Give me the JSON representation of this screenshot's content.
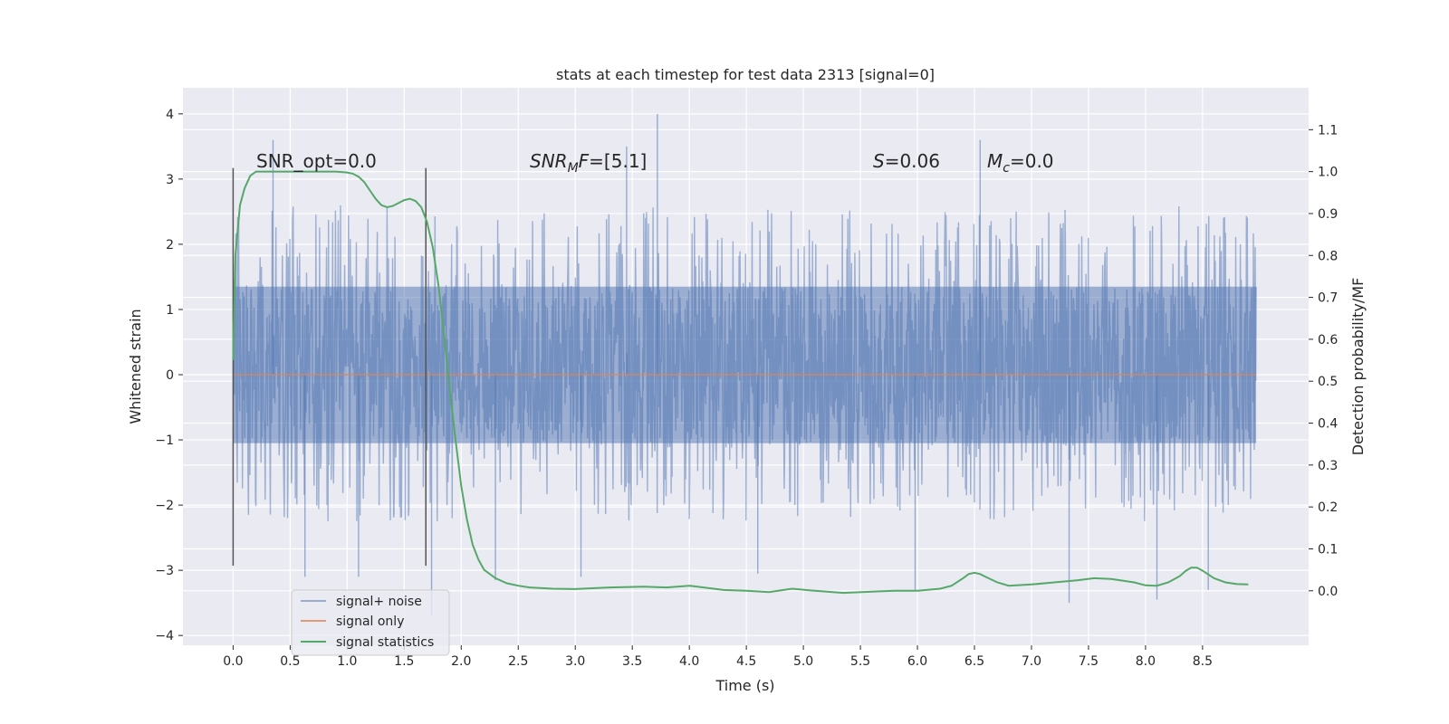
{
  "chart_data": {
    "type": "line",
    "title": "stats at each timestep for test data 2313 [signal=0]",
    "xlabel": "Time (s)",
    "ylabel": "Whitened strain",
    "y2label": "Detection probability/MF",
    "xlim": [
      -0.44,
      9.43
    ],
    "ylim": [
      -4.15,
      4.4
    ],
    "y2lim": [
      -0.13,
      1.2
    ],
    "x_ticks": [
      "0.0",
      "0.5",
      "1.0",
      "1.5",
      "2.0",
      "2.5",
      "3.0",
      "3.5",
      "4.0",
      "4.5",
      "5.0",
      "5.5",
      "6.0",
      "6.5",
      "7.0",
      "7.5",
      "8.0",
      "8.5"
    ],
    "y_ticks": [
      "4",
      "3",
      "2",
      "1",
      "0",
      "−1",
      "−2",
      "−3",
      "−4"
    ],
    "y2_ticks": [
      "1.1",
      "1.0",
      "0.9",
      "0.8",
      "0.7",
      "0.6",
      "0.5",
      "0.4",
      "0.3",
      "0.2",
      "0.1",
      "0.0"
    ],
    "grid": true,
    "legend_position": "lower-left",
    "annotations": {
      "snr_opt": "SNR_opt=0.0",
      "snr_mf_main": "SNR",
      "snr_mf_sub": "M",
      "snr_mf_rest": "F=[5.1]",
      "s_var": "S",
      "s_rest": "=0.06",
      "mc_var": "M",
      "mc_sub": "c",
      "mc_rest": "=0.0"
    },
    "colors": {
      "background": "#eaeaf2",
      "grid": "#ffffff",
      "noise": "#4c72b0",
      "signal": "#dd8452",
      "statistics": "#55a868",
      "marker": "#555555"
    },
    "markers_x": [
      0.0,
      1.69
    ],
    "series": [
      {
        "name": "signal+ noise",
        "t_start": 0.0,
        "t_end": 8.97,
        "typical_band": [
          -1.05,
          1.35
        ],
        "peak_range": [
          -3.5,
          4.0
        ],
        "spikes": [
          [
            0.35,
            3.6
          ],
          [
            3.72,
            4.0
          ],
          [
            3.45,
            3.5
          ],
          [
            6.55,
            3.6
          ],
          [
            1.74,
            -3.7
          ],
          [
            7.33,
            -3.5
          ],
          [
            2.3,
            -3.15
          ],
          [
            3.05,
            -3.1
          ],
          [
            5.98,
            -3.3
          ],
          [
            8.1,
            -3.45
          ],
          [
            8.55,
            -3.3
          ],
          [
            1.1,
            -3.1
          ],
          [
            0.63,
            -3.1
          ],
          [
            4.6,
            -3.05
          ]
        ]
      },
      {
        "name": "signal only",
        "x": [
          0.0,
          8.97
        ],
        "values": [
          0.0,
          0.0
        ]
      },
      {
        "name": "signal statistics",
        "axis": "right",
        "x": [
          0.0,
          0.02,
          0.06,
          0.1,
          0.15,
          0.2,
          0.3,
          0.5,
          0.7,
          0.9,
          1.0,
          1.05,
          1.1,
          1.15,
          1.2,
          1.25,
          1.3,
          1.35,
          1.4,
          1.45,
          1.5,
          1.55,
          1.6,
          1.65,
          1.7,
          1.75,
          1.8,
          1.85,
          1.9,
          1.95,
          2.0,
          2.05,
          2.1,
          2.15,
          2.2,
          2.3,
          2.4,
          2.5,
          2.6,
          2.8,
          3.0,
          3.3,
          3.6,
          3.8,
          4.0,
          4.3,
          4.5,
          4.7,
          4.9,
          5.1,
          5.35,
          5.6,
          5.8,
          6.0,
          6.2,
          6.3,
          6.4,
          6.45,
          6.5,
          6.55,
          6.6,
          6.7,
          6.8,
          7.0,
          7.2,
          7.4,
          7.55,
          7.7,
          7.9,
          8.0,
          8.1,
          8.2,
          8.3,
          8.35,
          8.4,
          8.45,
          8.5,
          8.6,
          8.7,
          8.8,
          8.9
        ],
        "values": [
          0.55,
          0.8,
          0.92,
          0.96,
          0.99,
          1.0,
          1.0,
          1.0,
          1.0,
          1.0,
          0.998,
          0.995,
          0.988,
          0.975,
          0.955,
          0.935,
          0.92,
          0.915,
          0.918,
          0.925,
          0.932,
          0.935,
          0.93,
          0.915,
          0.88,
          0.82,
          0.73,
          0.61,
          0.48,
          0.36,
          0.25,
          0.17,
          0.11,
          0.075,
          0.05,
          0.03,
          0.018,
          0.012,
          0.008,
          0.005,
          0.004,
          0.008,
          0.01,
          0.008,
          0.012,
          0.002,
          0.0,
          -0.003,
          0.005,
          0.0,
          -0.005,
          -0.002,
          0.0,
          0.0,
          0.005,
          0.012,
          0.03,
          0.04,
          0.043,
          0.04,
          0.033,
          0.02,
          0.012,
          0.015,
          0.02,
          0.025,
          0.03,
          0.028,
          0.02,
          0.013,
          0.012,
          0.02,
          0.035,
          0.047,
          0.055,
          0.055,
          0.048,
          0.03,
          0.02,
          0.016,
          0.015
        ]
      }
    ]
  }
}
